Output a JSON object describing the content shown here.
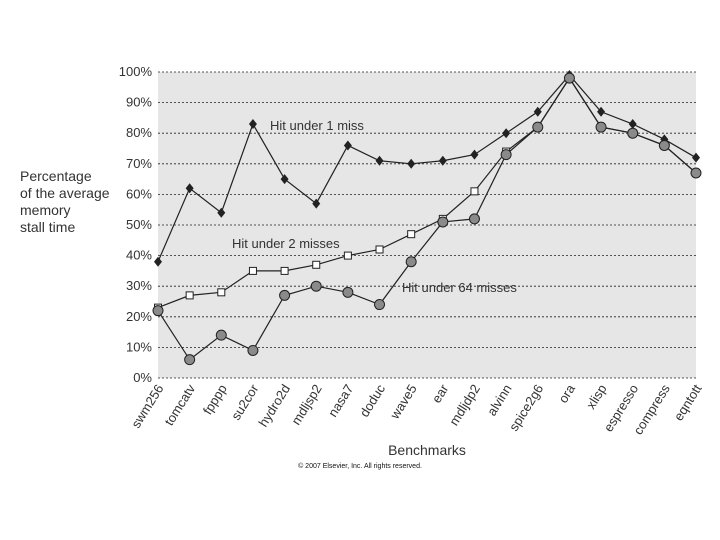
{
  "chart_data": {
    "type": "line",
    "title": "",
    "ylabel_lines": [
      "Percentage",
      "of the average",
      "memory",
      "stall time"
    ],
    "xlabel": "Benchmarks",
    "ylim": [
      0,
      100
    ],
    "yticks": [
      "0%",
      "10%",
      "20%",
      "30%",
      "40%",
      "50%",
      "60%",
      "70%",
      "80%",
      "90%",
      "100%"
    ],
    "categories": [
      "swm256",
      "tomcatv",
      "fpppp",
      "su2cor",
      "hydro2d",
      "mdljsp2",
      "nasa7",
      "doduc",
      "wave5",
      "ear",
      "mdljdp2",
      "alvinn",
      "spice2g6",
      "ora",
      "xlisp",
      "espresso",
      "compress",
      "eqntott"
    ],
    "grid": true,
    "series": [
      {
        "name": "Hit under 1 miss",
        "marker": "diamond",
        "color": "#222222",
        "values": [
          38,
          62,
          54,
          83,
          65,
          57,
          76,
          71,
          70,
          71,
          73,
          80,
          87,
          99,
          87,
          83,
          78,
          72
        ]
      },
      {
        "name": "Hit under 2 misses",
        "marker": "square",
        "color": "#222222",
        "values": [
          23,
          27,
          28,
          35,
          35,
          37,
          40,
          42,
          47,
          52,
          61,
          74,
          82,
          98,
          82,
          80,
          76,
          67
        ]
      },
      {
        "name": "Hit under 64 misses",
        "marker": "circle",
        "color": "#222222",
        "values": [
          22,
          6,
          14,
          9,
          27,
          30,
          28,
          24,
          38,
          51,
          52,
          73,
          82,
          98,
          82,
          80,
          76,
          67
        ]
      }
    ]
  },
  "copyright": "© 2007 Elsevier, Inc. All rights reserved."
}
